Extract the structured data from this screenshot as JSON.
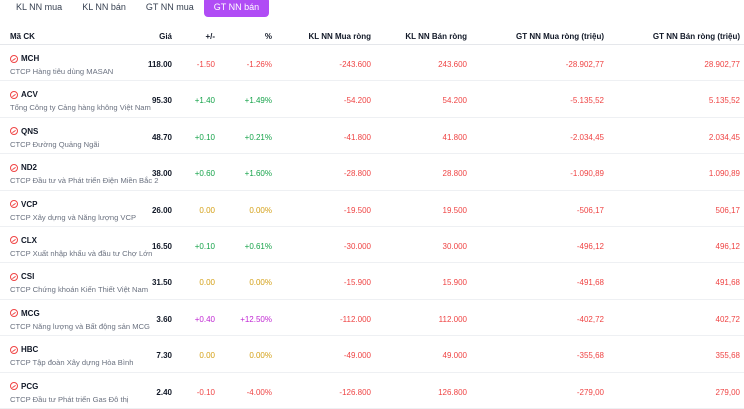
{
  "tabs": [
    {
      "label": "KL NN mua",
      "active": false
    },
    {
      "label": "KL NN bán",
      "active": false
    },
    {
      "label": "GT NN mua",
      "active": false
    },
    {
      "label": "GT NN bán",
      "active": true
    }
  ],
  "headers": {
    "symbol": "Mã CK",
    "price": "Giá",
    "change": "+/-",
    "percent": "%",
    "kl_net_buy": "KL NN Mua ròng",
    "kl_net_sell": "KL NN Bán ròng",
    "gt_net_buy": "GT NN Mua ròng (triệu)",
    "gt_net_sell": "GT NN Bán ròng (triệu)"
  },
  "colors": {
    "down": "#ef4444",
    "up": "#16a34a",
    "reference": "#d4a017",
    "ceiling": "#c026d3",
    "accent": "#b04cf5"
  },
  "rows": [
    {
      "symbol": "MCH",
      "name": "CTCP Hàng tiêu dùng MASAN",
      "price": "118.00",
      "change": "-1.50",
      "percent": "-1.26%",
      "kl_buy": "-243.600",
      "kl_sell": "243.600",
      "gt_buy": "-28.902,77",
      "gt_sell": "28.902,77",
      "trend": "neg"
    },
    {
      "symbol": "ACV",
      "name": "Tổng Công ty Cảng hàng không Việt Nam",
      "price": "95.30",
      "change": "+1.40",
      "percent": "+1.49%",
      "kl_buy": "-54.200",
      "kl_sell": "54.200",
      "gt_buy": "-5.135,52",
      "gt_sell": "5.135,52",
      "trend": "pos"
    },
    {
      "symbol": "QNS",
      "name": "CTCP Đường Quảng Ngãi",
      "price": "48.70",
      "change": "+0.10",
      "percent": "+0.21%",
      "kl_buy": "-41.800",
      "kl_sell": "41.800",
      "gt_buy": "-2.034,45",
      "gt_sell": "2.034,45",
      "trend": "pos"
    },
    {
      "symbol": "ND2",
      "name": "CTCP Đầu tư và Phát triển Điện Miền Bắc 2",
      "price": "38.00",
      "change": "+0.60",
      "percent": "+1.60%",
      "kl_buy": "-28.800",
      "kl_sell": "28.800",
      "gt_buy": "-1.090,89",
      "gt_sell": "1.090,89",
      "trend": "pos"
    },
    {
      "symbol": "VCP",
      "name": "CTCP Xây dựng và Năng lượng VCP",
      "price": "26.00",
      "change": "0.00",
      "percent": "0.00%",
      "kl_buy": "-19.500",
      "kl_sell": "19.500",
      "gt_buy": "-506,17",
      "gt_sell": "506,17",
      "trend": "ref"
    },
    {
      "symbol": "CLX",
      "name": "CTCP Xuất nhập khẩu và đầu tư Chợ Lớn",
      "price": "16.50",
      "change": "+0.10",
      "percent": "+0.61%",
      "kl_buy": "-30.000",
      "kl_sell": "30.000",
      "gt_buy": "-496,12",
      "gt_sell": "496,12",
      "trend": "pos"
    },
    {
      "symbol": "CSI",
      "name": "CTCP Chứng khoán Kiến Thiết Việt Nam",
      "price": "31.50",
      "change": "0.00",
      "percent": "0.00%",
      "kl_buy": "-15.900",
      "kl_sell": "15.900",
      "gt_buy": "-491,68",
      "gt_sell": "491,68",
      "trend": "ref"
    },
    {
      "symbol": "MCG",
      "name": "CTCP Năng lượng và Bất động sản MCG",
      "price": "3.60",
      "change": "+0.40",
      "percent": "+12.50%",
      "kl_buy": "-112.000",
      "kl_sell": "112.000",
      "gt_buy": "-402,72",
      "gt_sell": "402,72",
      "trend": "ceil"
    },
    {
      "symbol": "HBC",
      "name": "CTCP Tập đoàn Xây dựng Hòa Bình",
      "price": "7.30",
      "change": "0.00",
      "percent": "0.00%",
      "kl_buy": "-49.000",
      "kl_sell": "49.000",
      "gt_buy": "-355,68",
      "gt_sell": "355,68",
      "trend": "ref"
    },
    {
      "symbol": "PCG",
      "name": "CTCP Đầu tư Phát triển Gas Đô thị",
      "price": "2.40",
      "change": "-0.10",
      "percent": "-4.00%",
      "kl_buy": "-126.800",
      "kl_sell": "126.800",
      "gt_buy": "-279,00",
      "gt_sell": "279,00",
      "trend": "neg"
    }
  ]
}
